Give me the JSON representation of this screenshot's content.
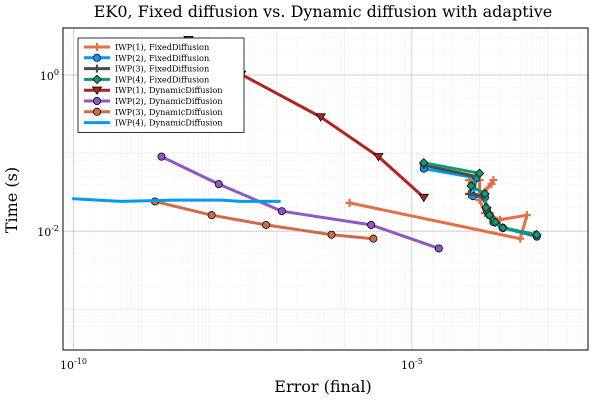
{
  "chart_data": {
    "type": "line",
    "title": "EK0, Fixed diffusion vs. Dynamic diffusion with adaptive",
    "xlabel": "Error (final)",
    "ylabel": "Time (s)",
    "xscale": "log",
    "yscale": "log",
    "xlim": [
      7e-11,
      0.004
    ],
    "ylim": [
      0.0003,
      4
    ],
    "grid": true,
    "legend_position": "top-left",
    "x_ticks": [
      {
        "value": 1e-10,
        "label": "10^-10"
      },
      {
        "value": 1e-05,
        "label": "10^-5"
      }
    ],
    "y_ticks": [
      {
        "value": 1,
        "label": "10^0"
      },
      {
        "value": 0.01,
        "label": "10^-2"
      }
    ],
    "series": [
      {
        "name": "IWP(1), FixedDiffusion",
        "color": "#e26f46",
        "marker": "cross",
        "x": [
          7e-05,
          0.0001,
          0.0001,
          0.00015,
          0.00016,
          0.0001,
          0.00012,
          0.0002,
          0.0005,
          0.0004,
          1.2e-06
        ],
        "y": [
          0.045,
          0.045,
          0.03,
          0.04,
          0.045,
          0.025,
          0.017,
          0.014,
          0.016,
          0.008,
          0.023
        ]
      },
      {
        "name": "IWP(2), FixedDiffusion",
        "color": "#009af9",
        "marker": "circle",
        "x": [
          1.5e-05,
          9e-05,
          8e-05,
          0.00012,
          0.00013,
          0.00014,
          0.00016,
          0.00022,
          0.0007
        ],
        "y": [
          0.063,
          0.048,
          0.028,
          0.027,
          0.018,
          0.016,
          0.013,
          0.011,
          0.0085
        ]
      },
      {
        "name": "IWP(3), FixedDiffusion",
        "color": "#4b4b4b",
        "marker": "cross",
        "x": [
          1.5e-05,
          9e-05,
          7e-05,
          0.00011,
          0.00013,
          0.00014,
          0.00016,
          0.00023,
          0.00065
        ],
        "y": [
          0.07,
          0.05,
          0.03,
          0.028,
          0.02,
          0.017,
          0.014,
          0.011,
          0.009
        ]
      },
      {
        "name": "IWP(4), FixedDiffusion",
        "color": "#0f9b6f",
        "marker": "diamond",
        "x": [
          1.5e-05,
          0.0001,
          7.5e-05,
          0.00012,
          0.000125,
          0.00014,
          0.00017,
          0.00022,
          0.0007
        ],
        "y": [
          0.075,
          0.055,
          0.038,
          0.03,
          0.02,
          0.016,
          0.013,
          0.011,
          0.009
        ]
      },
      {
        "name": "IWP(1), DynamicDiffusion",
        "color": "#b32323",
        "marker": "triangle-down",
        "x": [
          5e-09,
          3e-08,
          4.5e-07,
          3.2e-06,
          1.5e-05
        ],
        "y": [
          2.85,
          1.02,
          0.29,
          0.09,
          0.027
        ]
      },
      {
        "name": "IWP(2), DynamicDiffusion",
        "color": "#8f57c2",
        "marker": "circle",
        "x": [
          2e-09,
          1.4e-08,
          1.2e-07,
          2.5e-06,
          2.5e-05
        ],
        "y": [
          0.09,
          0.04,
          0.018,
          0.012,
          0.006
        ]
      },
      {
        "name": "IWP(3), DynamicDiffusion",
        "color": "#cf6b46",
        "marker": "circle",
        "x": [
          1.6e-09,
          1.1e-08,
          7e-08,
          6.5e-07,
          2.7e-06
        ],
        "y": [
          0.024,
          0.016,
          0.012,
          0.009,
          0.008
        ]
      },
      {
        "name": "IWP(4), DynamicDiffusion",
        "color": "#009af9",
        "marker": "none",
        "x": [
          1e-10,
          5e-10,
          3e-09,
          1.5e-08,
          3e-08,
          1.1e-07
        ],
        "y": [
          0.026,
          0.024,
          0.025,
          0.025,
          0.024,
          0.024
        ]
      }
    ]
  }
}
